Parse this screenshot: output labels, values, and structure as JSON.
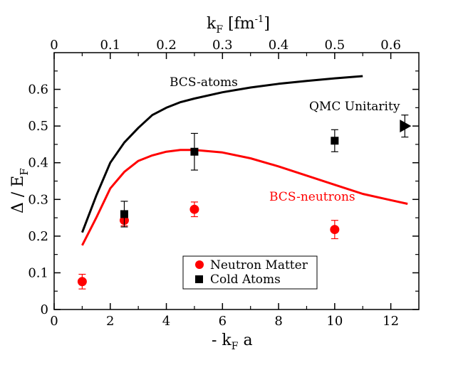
{
  "chart_data": {
    "type": "scatter",
    "bottom_axis": {
      "label_main": "- k",
      "label_sub": "F",
      "label_tail": " a",
      "lim": [
        0,
        13
      ],
      "ticks": [
        0,
        2,
        4,
        6,
        8,
        10,
        12
      ],
      "tick_labels": [
        "0",
        "2",
        "4",
        "6",
        "8",
        "10",
        "12"
      ]
    },
    "top_axis": {
      "label_main": "k",
      "label_sub": "F",
      "label_bracket": " [fm",
      "label_sup": "-1",
      "label_close": "]",
      "lim": [
        0,
        0.65
      ],
      "ticks": [
        0,
        0.1,
        0.2,
        0.3,
        0.4,
        0.5,
        0.6
      ],
      "tick_labels": [
        "0",
        "0.1",
        "0.2",
        "0.3",
        "0.4",
        "0.5",
        "0.6"
      ]
    },
    "left_axis": {
      "label_main": "Δ / E",
      "label_sub": "F",
      "lim": [
        0,
        0.7
      ],
      "ticks": [
        0,
        0.1,
        0.2,
        0.3,
        0.4,
        0.5,
        0.6
      ],
      "tick_labels": [
        "0",
        "0.1",
        "0.2",
        "0.3",
        "0.4",
        "0.5",
        "0.6"
      ]
    },
    "series": [
      {
        "name": "BCS-atoms",
        "kind": "line",
        "color": "#000000",
        "x": [
          1.0,
          1.5,
          2.0,
          2.5,
          3.0,
          3.5,
          4.0,
          4.5,
          5.0,
          6.0,
          7.0,
          8.0,
          9.0,
          10.0,
          11.0
        ],
        "y": [
          0.21,
          0.31,
          0.4,
          0.455,
          0.495,
          0.53,
          0.55,
          0.565,
          0.575,
          0.592,
          0.605,
          0.615,
          0.623,
          0.63,
          0.636
        ]
      },
      {
        "name": "BCS-neutrons",
        "kind": "line",
        "color": "#ff0000",
        "x": [
          1.0,
          1.5,
          2.0,
          2.5,
          3.0,
          3.5,
          4.0,
          4.5,
          5.0,
          6.0,
          7.0,
          8.0,
          9.0,
          10.0,
          11.0,
          12.0,
          12.6
        ],
        "y": [
          0.175,
          0.25,
          0.33,
          0.375,
          0.405,
          0.42,
          0.43,
          0.435,
          0.435,
          0.428,
          0.412,
          0.39,
          0.365,
          0.34,
          0.315,
          0.298,
          0.288
        ]
      },
      {
        "name": "Neutron Matter",
        "kind": "points",
        "marker": "circle",
        "color": "#ff0000",
        "x": [
          1.0,
          2.5,
          5.0,
          10.0
        ],
        "y": [
          0.076,
          0.243,
          0.273,
          0.218
        ],
        "err": [
          0.02,
          0.015,
          0.02,
          0.025
        ]
      },
      {
        "name": "Cold Atoms",
        "kind": "points",
        "marker": "square",
        "color": "#000000",
        "x": [
          2.5,
          5.0,
          10.0
        ],
        "y": [
          0.26,
          0.43,
          0.46
        ],
        "err": [
          0.035,
          0.05,
          0.03
        ]
      },
      {
        "name": "QMC Unitarity",
        "kind": "points",
        "marker": "triangle-right",
        "color": "#000000",
        "x": [
          12.5
        ],
        "y": [
          0.5
        ],
        "err": [
          0.03
        ]
      }
    ],
    "annotations": [
      {
        "text": "BCS-atoms",
        "color": "#000000"
      },
      {
        "text": "QMC Unitarity",
        "color": "#000000"
      },
      {
        "text": "BCS-neutrons",
        "color": "#ff0000"
      }
    ],
    "legend": {
      "position": "bottom-center",
      "entries": [
        "Neutron Matter",
        "Cold Atoms"
      ]
    }
  }
}
